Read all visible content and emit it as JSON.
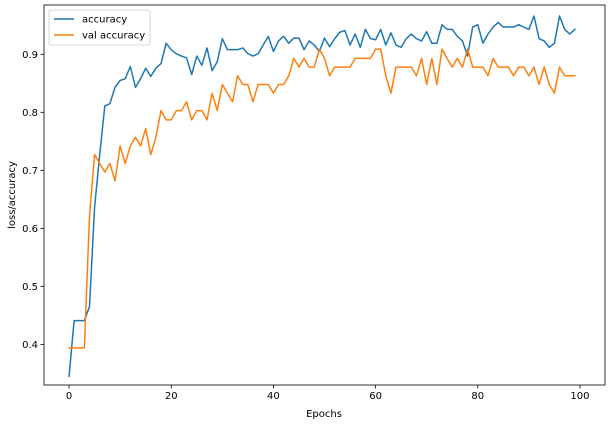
{
  "chart_data": {
    "type": "line",
    "title": "",
    "xlabel": "Epochs",
    "ylabel": "loss/accuracy",
    "xlim": [
      -4.9,
      104.9
    ],
    "ylim": [
      0.33,
      0.985
    ],
    "xticks": [
      0,
      20,
      40,
      60,
      80,
      100
    ],
    "yticks": [
      0.4,
      0.5,
      0.6,
      0.7,
      0.8,
      0.9
    ],
    "xtick_labels": [
      "0",
      "20",
      "40",
      "60",
      "80",
      "100"
    ],
    "ytick_labels": [
      "0.4",
      "0.5",
      "0.6",
      "0.7",
      "0.8",
      "0.9"
    ],
    "grid": false,
    "legend_position": "upper-left",
    "series": [
      {
        "name": "accuracy",
        "color": "#1f77b4",
        "x_start": 0,
        "values": [
          0.345,
          0.441,
          0.441,
          0.441,
          0.465,
          0.636,
          0.727,
          0.811,
          0.815,
          0.843,
          0.855,
          0.858,
          0.879,
          0.843,
          0.858,
          0.876,
          0.862,
          0.876,
          0.884,
          0.919,
          0.908,
          0.901,
          0.897,
          0.894,
          0.865,
          0.897,
          0.881,
          0.911,
          0.872,
          0.887,
          0.927,
          0.908,
          0.908,
          0.908,
          0.911,
          0.901,
          0.897,
          0.901,
          0.916,
          0.931,
          0.905,
          0.923,
          0.931,
          0.919,
          0.928,
          0.928,
          0.908,
          0.923,
          0.916,
          0.905,
          0.928,
          0.913,
          0.927,
          0.938,
          0.941,
          0.916,
          0.935,
          0.912,
          0.943,
          0.927,
          0.925,
          0.943,
          0.916,
          0.937,
          0.916,
          0.912,
          0.927,
          0.935,
          0.927,
          0.923,
          0.939,
          0.919,
          0.919,
          0.951,
          0.943,
          0.943,
          0.931,
          0.923,
          0.897,
          0.947,
          0.951,
          0.919,
          0.935,
          0.947,
          0.955,
          0.947,
          0.947,
          0.947,
          0.951,
          0.947,
          0.943,
          0.966,
          0.927,
          0.923,
          0.912,
          0.919,
          0.966,
          0.943,
          0.935,
          0.943
        ]
      },
      {
        "name": "val accuracy",
        "color": "#ff7f0e",
        "x_start": 0,
        "values": [
          0.394,
          0.394,
          0.394,
          0.394,
          0.621,
          0.727,
          0.712,
          0.697,
          0.712,
          0.682,
          0.742,
          0.712,
          0.742,
          0.757,
          0.742,
          0.772,
          0.727,
          0.757,
          0.803,
          0.787,
          0.787,
          0.803,
          0.803,
          0.818,
          0.787,
          0.803,
          0.803,
          0.787,
          0.833,
          0.803,
          0.848,
          0.833,
          0.818,
          0.863,
          0.848,
          0.848,
          0.818,
          0.848,
          0.848,
          0.848,
          0.833,
          0.848,
          0.848,
          0.863,
          0.893,
          0.878,
          0.893,
          0.878,
          0.878,
          0.909,
          0.893,
          0.863,
          0.878,
          0.878,
          0.878,
          0.878,
          0.893,
          0.893,
          0.893,
          0.893,
          0.909,
          0.909,
          0.863,
          0.833,
          0.878,
          0.878,
          0.878,
          0.878,
          0.863,
          0.893,
          0.848,
          0.893,
          0.848,
          0.909,
          0.893,
          0.878,
          0.893,
          0.878,
          0.909,
          0.878,
          0.878,
          0.878,
          0.863,
          0.893,
          0.878,
          0.878,
          0.878,
          0.863,
          0.878,
          0.878,
          0.863,
          0.878,
          0.848,
          0.878,
          0.848,
          0.833,
          0.878,
          0.863,
          0.863,
          0.863
        ]
      }
    ]
  }
}
